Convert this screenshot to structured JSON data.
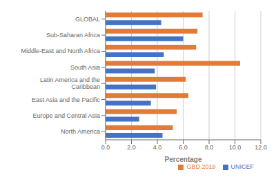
{
  "chart_data": {
    "type": "bar",
    "orientation": "horizontal",
    "categories": [
      "North America",
      "Europe and Central Asia",
      "East Asia and the Pacific",
      "Latin America and the\nCaribbean",
      "South Asia",
      "Middle-East and North Africa",
      "Sub-Saharan Africa",
      "GLOBAL"
    ],
    "series": [
      {
        "name": "GBD 2019",
        "color": "#E07B3A",
        "values": [
          5.2,
          5.5,
          6.4,
          6.2,
          10.4,
          7.0,
          7.1,
          7.5
        ]
      },
      {
        "name": "UNICEF",
        "color": "#4472C4",
        "values": [
          4.4,
          2.6,
          3.5,
          3.9,
          3.8,
          4.5,
          6.0,
          4.3
        ]
      }
    ],
    "xlabel": "Percentage",
    "xlim": [
      0,
      12.0
    ],
    "xticks": [
      {
        "value": 0.0,
        "label": "0.0"
      },
      {
        "value": 2.0,
        "label": "2.0"
      },
      {
        "value": 4.0,
        "label": "4.0"
      },
      {
        "value": 6.0,
        "label": "6.0"
      },
      {
        "value": 8.0,
        "label": "8.0"
      },
      {
        "value": 10.0,
        "label": "10.0"
      },
      {
        "value": 12.0,
        "label": "12.0"
      }
    ],
    "grid": true,
    "legend": "lower right"
  }
}
